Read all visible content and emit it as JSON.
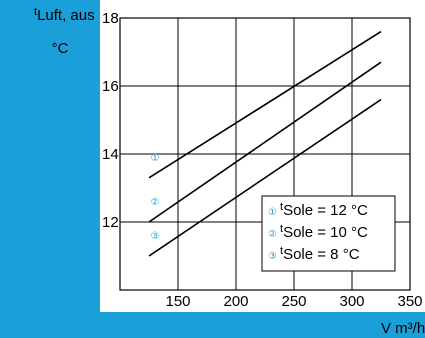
{
  "chart_data": {
    "type": "line",
    "xlabel": "V m³/h",
    "ylabel": {
      "prefix": "t",
      "sub": "Luft, aus",
      "unit": "°C"
    },
    "xlim": [
      100,
      350
    ],
    "ylim": [
      10,
      18
    ],
    "x_ticks": [
      "150",
      "200",
      "250",
      "300",
      "350"
    ],
    "y_ticks": [
      "18",
      "16",
      "14",
      "12"
    ],
    "grid": true,
    "accent_color": "#1a9fd9",
    "marker_color": "#1a9fd9",
    "series": [
      {
        "marker": "①",
        "points": [
          [
            125,
            13.3
          ],
          [
            325,
            17.6
          ]
        ]
      },
      {
        "marker": "②",
        "points": [
          [
            125,
            12.0
          ],
          [
            325,
            16.7
          ]
        ]
      },
      {
        "marker": "③",
        "points": [
          [
            125,
            11.0
          ],
          [
            325,
            15.6
          ]
        ]
      }
    ],
    "legend": {
      "position": "bottom-right",
      "entries": [
        {
          "marker": "①",
          "prefix": "t",
          "sub": "Sole",
          "text": " = 12 °C"
        },
        {
          "marker": "②",
          "prefix": "t",
          "sub": "Sole",
          "text": " = 10 °C"
        },
        {
          "marker": "③",
          "prefix": "t",
          "sub": "Sole",
          "text": " =   8 °C"
        }
      ]
    }
  }
}
